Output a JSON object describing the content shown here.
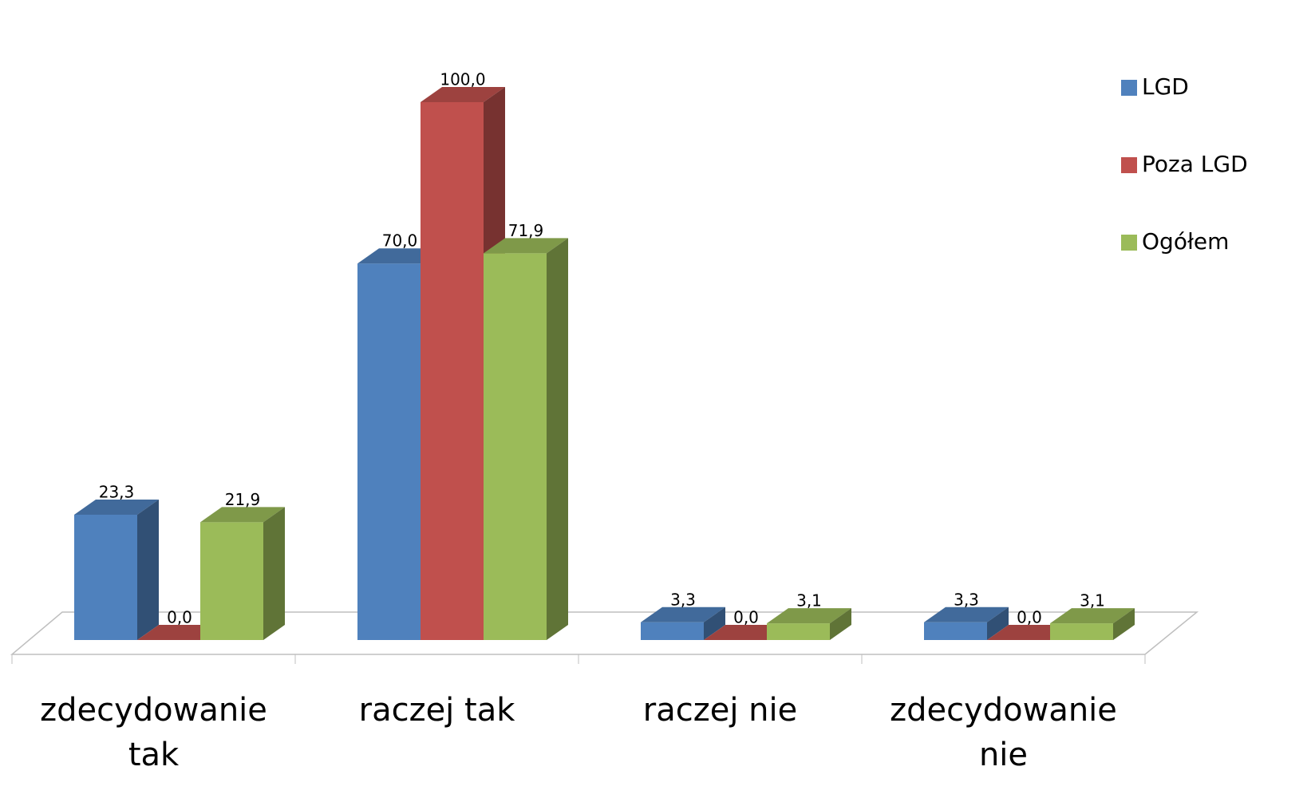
{
  "chart_data": {
    "type": "bar3d",
    "categories": [
      "zdecydowanie tak",
      "raczej tak",
      "raczej nie",
      "zdecydowanie nie"
    ],
    "series": [
      {
        "name": "LGD",
        "color": "#4f81bd",
        "values": [
          23.3,
          70.0,
          3.3,
          3.3
        ],
        "value_labels": [
          "23,3",
          "70,0",
          "3,3",
          "3,3"
        ]
      },
      {
        "name": "Poza LGD",
        "color": "#c0504d",
        "values": [
          0.0,
          100.0,
          0.0,
          0.0
        ],
        "value_labels": [
          "0,0",
          "100,0",
          "0,0",
          "0,0"
        ]
      },
      {
        "name": "Ogółem",
        "color": "#9bbb59",
        "values": [
          21.9,
          71.9,
          3.1,
          3.1
        ],
        "value_labels": [
          "21,9",
          "71,9",
          "3,1",
          "3,1"
        ]
      }
    ],
    "legend": "right"
  }
}
